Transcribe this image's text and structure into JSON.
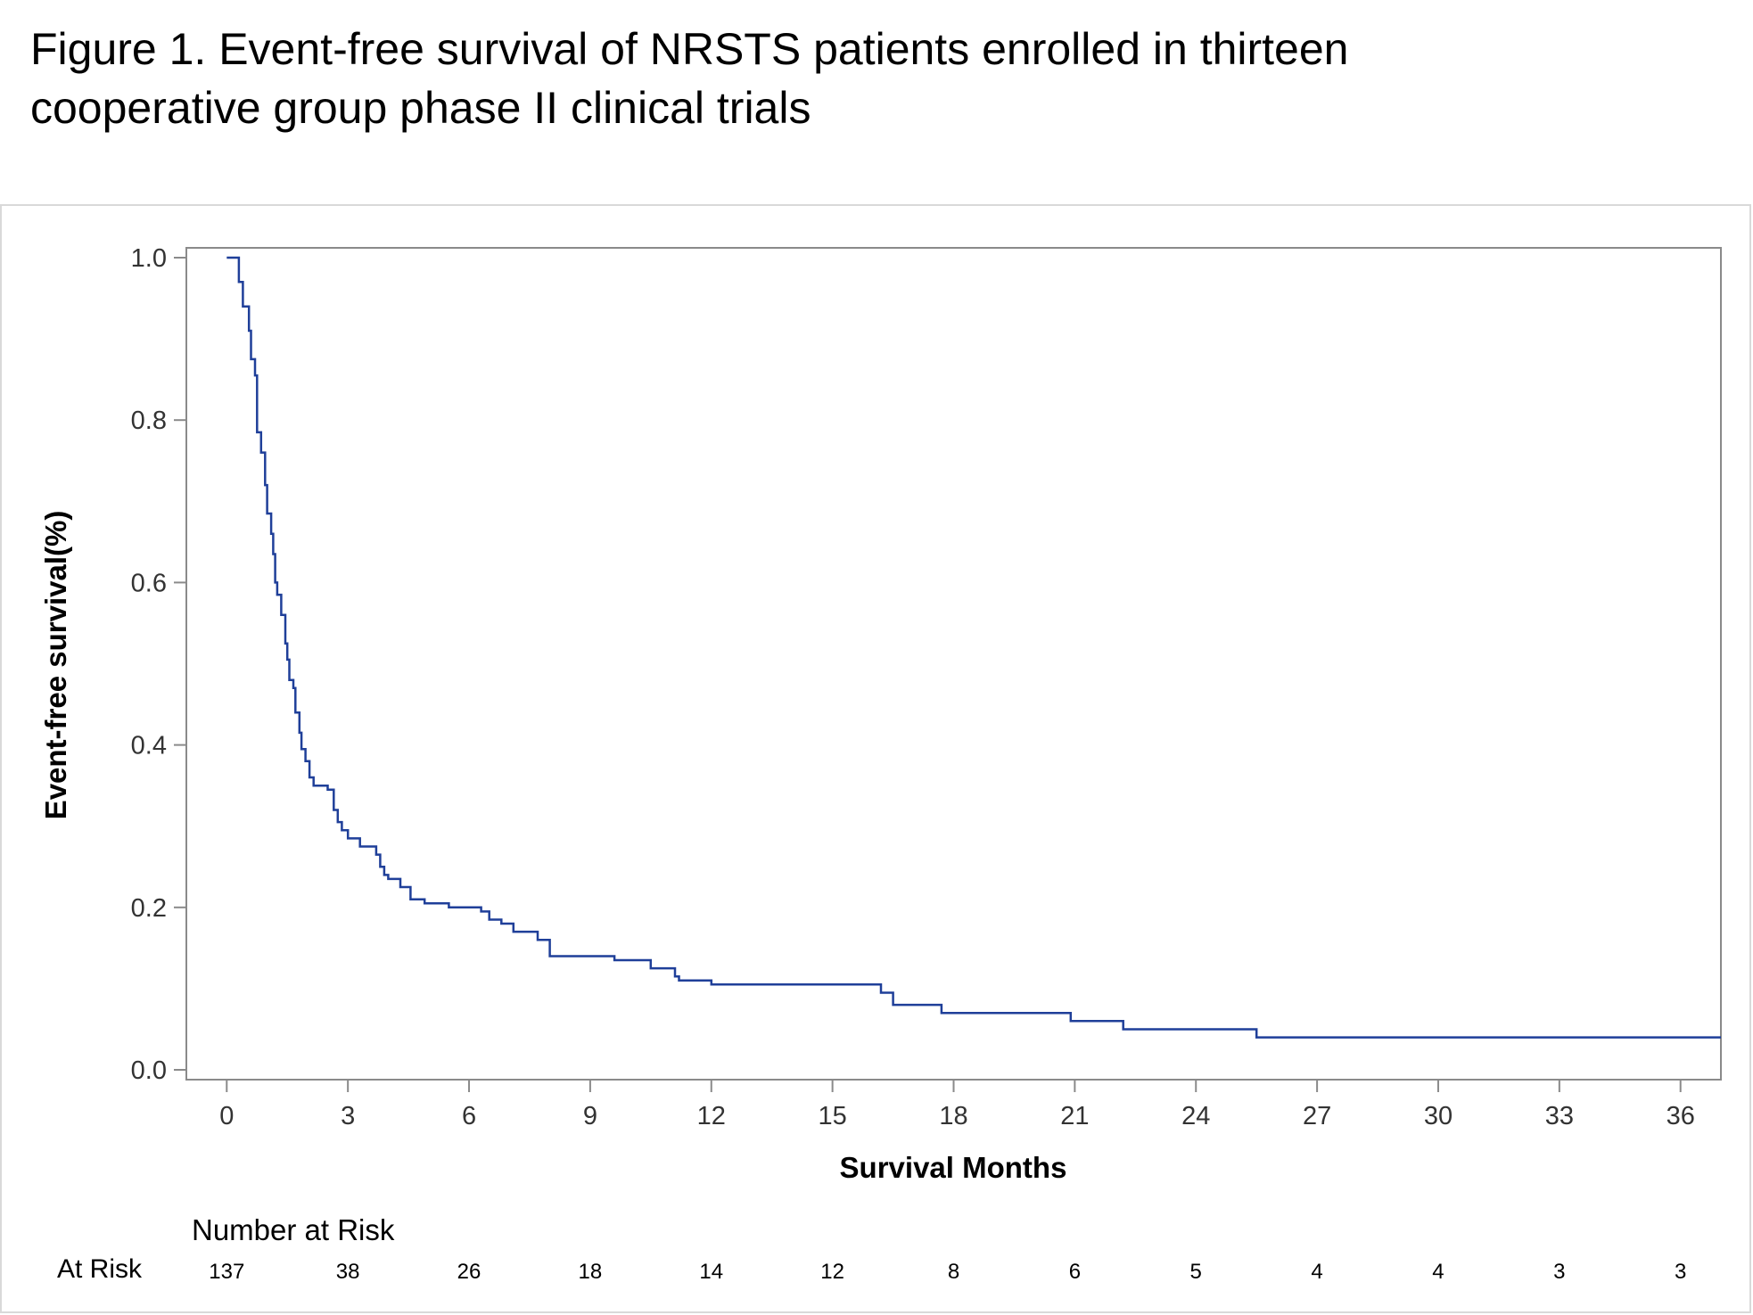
{
  "figure": {
    "title_line1": "Figure 1. Event-free survival of NRSTS patients enrolled in thirteen",
    "title_line2": "cooperative group phase II clinical trials"
  },
  "chart_data": {
    "type": "line",
    "step": true,
    "title": "Figure 1. Event-free survival of NRSTS patients enrolled in thirteen cooperative group phase II clinical trials",
    "xlabel": "Survival Months",
    "ylabel": "Event-free survival(%)",
    "xlim": [
      -1,
      37
    ],
    "ylim": [
      0,
      1.0
    ],
    "xticks": [
      0,
      3,
      6,
      9,
      12,
      15,
      18,
      21,
      24,
      27,
      30,
      33,
      36
    ],
    "yticks": [
      0.0,
      0.2,
      0.4,
      0.6,
      0.8,
      1.0
    ],
    "ytick_labels": [
      "0.0",
      "0.2",
      "0.4",
      "0.6",
      "0.8",
      "1.0"
    ],
    "grid": false,
    "line_color": "#1f3f99",
    "series": [
      {
        "x": [
          0,
          0.3,
          0.4,
          0.45,
          0.55,
          0.6,
          0.7,
          0.75,
          0.85,
          0.95,
          1.0,
          1.1,
          1.15,
          1.2,
          1.25,
          1.35,
          1.45,
          1.5,
          1.55,
          1.65,
          1.7,
          1.8,
          1.85,
          1.95,
          2.05,
          2.15,
          2.5,
          2.65,
          2.75,
          2.85,
          3.0,
          3.3,
          3.7,
          3.8,
          3.9,
          4.0,
          4.3,
          4.55,
          4.9,
          5.5,
          6.3,
          6.5,
          6.8,
          7.1,
          7.7,
          8.0,
          9.6,
          10.5,
          11.1,
          11.2,
          12.0,
          16.2,
          16.5,
          17.7,
          20.9,
          22.2,
          25.5,
          37
        ],
        "y": [
          1.0,
          0.97,
          0.94,
          0.94,
          0.91,
          0.875,
          0.855,
          0.785,
          0.76,
          0.72,
          0.685,
          0.66,
          0.635,
          0.6,
          0.585,
          0.56,
          0.525,
          0.505,
          0.48,
          0.47,
          0.44,
          0.415,
          0.395,
          0.38,
          0.36,
          0.35,
          0.345,
          0.32,
          0.305,
          0.295,
          0.285,
          0.275,
          0.265,
          0.25,
          0.24,
          0.235,
          0.225,
          0.21,
          0.205,
          0.2,
          0.195,
          0.185,
          0.18,
          0.17,
          0.16,
          0.14,
          0.135,
          0.125,
          0.115,
          0.11,
          0.105,
          0.095,
          0.08,
          0.07,
          0.06,
          0.05,
          0.04,
          0.04
        ]
      }
    ],
    "risk_table": {
      "title": "Number at Risk",
      "row_label": "At Risk",
      "x": [
        0,
        3,
        6,
        9,
        12,
        15,
        18,
        21,
        24,
        27,
        30,
        33,
        36
      ],
      "values": [
        "137",
        "38",
        "26",
        "18",
        "14",
        "12",
        "8",
        "6",
        "5",
        "4",
        "4",
        "3",
        "3"
      ]
    }
  }
}
